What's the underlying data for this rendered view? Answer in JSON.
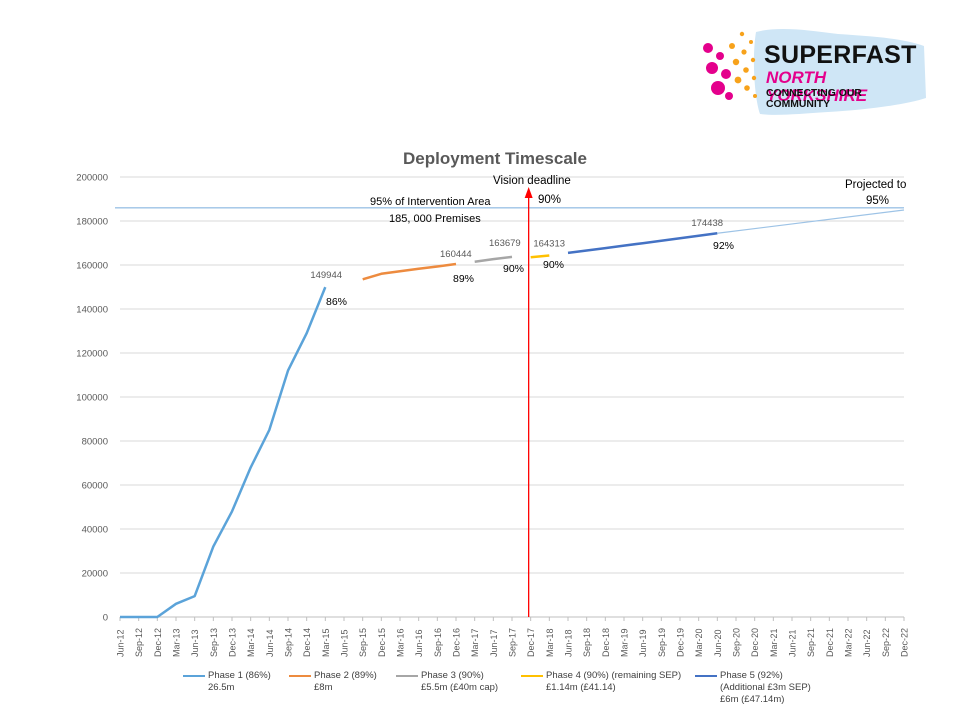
{
  "logo": {
    "line1": "SUPERFAST",
    "line2": "NORTH YORKSHIRE",
    "line3": "CONNECTING OUR COMMUNITY",
    "colors": {
      "magenta": "#e4008c",
      "orange": "#f7a21b",
      "light_blue": "#cfe6f6",
      "black": "#111111"
    }
  },
  "chart_data": {
    "type": "line",
    "title": "Deployment Timescale",
    "xlabel": "",
    "ylabel": "",
    "ylim": [
      0,
      200000
    ],
    "yticks": [
      0,
      20000,
      40000,
      60000,
      80000,
      100000,
      120000,
      140000,
      160000,
      180000,
      200000
    ],
    "x_categories": [
      "Jun-12",
      "Sep-12",
      "Dec-12",
      "Mar-13",
      "Jun-13",
      "Sep-13",
      "Dec-13",
      "Mar-14",
      "Jun-14",
      "Sep-14",
      "Dec-14",
      "Mar-15",
      "Jun-15",
      "Sep-15",
      "Dec-15",
      "Mar-16",
      "Jun-16",
      "Sep-16",
      "Dec-16",
      "Mar-17",
      "Jun-17",
      "Sep-17",
      "Dec-17",
      "Mar-18",
      "Jun-18",
      "Sep-18",
      "Dec-18",
      "Mar-19",
      "Jun-19",
      "Sep-19",
      "Dec-19",
      "Mar-20",
      "Jun-20",
      "Sep-20",
      "Dec-20",
      "Mar-21",
      "Jun-21",
      "Sep-21",
      "Dec-21",
      "Mar-22",
      "Jun-22",
      "Sep-22",
      "Dec-22"
    ],
    "grid": true,
    "legend_position": "bottom",
    "series": [
      {
        "name": "Phase 1 (86%)",
        "detail": "26.5m",
        "color": "#5ba3d9",
        "x": [
          "Jun-12",
          "Sep-12",
          "Dec-12",
          "Mar-13",
          "Jun-13",
          "Sep-13",
          "Dec-13",
          "Mar-14",
          "Jun-14",
          "Sep-14",
          "Dec-14",
          "Mar-15"
        ],
        "values": [
          0,
          0,
          0,
          6000,
          9500,
          32000,
          48000,
          68000,
          85000,
          112000,
          129000,
          149944
        ]
      },
      {
        "name": "Phase 2 (89%)",
        "detail": "£8m",
        "color": "#ed8b3f",
        "x": [
          "Sep-15",
          "Dec-15",
          "Mar-16",
          "Jun-16",
          "Sep-16",
          "Dec-16"
        ],
        "values": [
          153500,
          156000,
          157200,
          158300,
          159300,
          160444
        ]
      },
      {
        "name": "Phase 3 (90%)",
        "detail": "£5.5m (£40m cap)",
        "color": "#a6a6a6",
        "x": [
          "Mar-17",
          "Jun-17",
          "Sep-17"
        ],
        "values": [
          161500,
          162700,
          163679
        ]
      },
      {
        "name": "Phase 4 (90%) (remaining SEP)",
        "detail": "£1.14m (£41.14)",
        "color": "#ffc000",
        "x": [
          "Dec-17",
          "Mar-18"
        ],
        "values": [
          163500,
          164313
        ]
      },
      {
        "name": "Phase 5 (92%)",
        "detail": "(Additional £3m SEP)",
        "detail2": "£6m (£47.14m)",
        "color": "#4472c4",
        "x": [
          "Jun-18",
          "Sep-18",
          "Dec-18",
          "Mar-19",
          "Jun-19",
          "Sep-19",
          "Dec-19",
          "Mar-20",
          "Jun-20"
        ],
        "values": [
          165500,
          166600,
          167700,
          168800,
          169900,
          171000,
          172200,
          173300,
          174438
        ]
      }
    ],
    "projection": {
      "from_x": "Jun-20",
      "from_value": 174438,
      "to_x": "Dec-22",
      "to_value": 185000,
      "color": "#9dc3e6"
    },
    "reference_line": {
      "value": 186000,
      "color": "#9dc3e6"
    },
    "vision_deadline": {
      "x": "Dec-17",
      "color": "#ff0000"
    },
    "data_labels": [
      {
        "text": "149944",
        "x": "Mar-15",
        "value": 149944
      },
      {
        "text": "160444",
        "x": "Dec-16",
        "value": 160444
      },
      {
        "text": "163679",
        "x": "Sep-17",
        "value": 163679
      },
      {
        "text": "164313",
        "x": "Mar-18",
        "value": 164313
      },
      {
        "text": "174438",
        "x": "Jun-20",
        "value": 174438
      }
    ],
    "annotations": [
      {
        "id": "pct-86",
        "text": "86%"
      },
      {
        "id": "pct-89",
        "text": "89%"
      },
      {
        "id": "pct-90a",
        "text": "90%"
      },
      {
        "id": "pct-90b",
        "text": "90%"
      },
      {
        "id": "pct-92",
        "text": "92%"
      },
      {
        "id": "vision-title",
        "text": "Vision deadline"
      },
      {
        "id": "vision-pct",
        "text": "90%"
      },
      {
        "id": "intervention-line1",
        "text": "95% of Intervention Area"
      },
      {
        "id": "intervention-line2",
        "text": "185, 000 Premises"
      },
      {
        "id": "projected-line1",
        "text": "Projected to"
      },
      {
        "id": "projected-line2",
        "text": "95%"
      }
    ]
  }
}
